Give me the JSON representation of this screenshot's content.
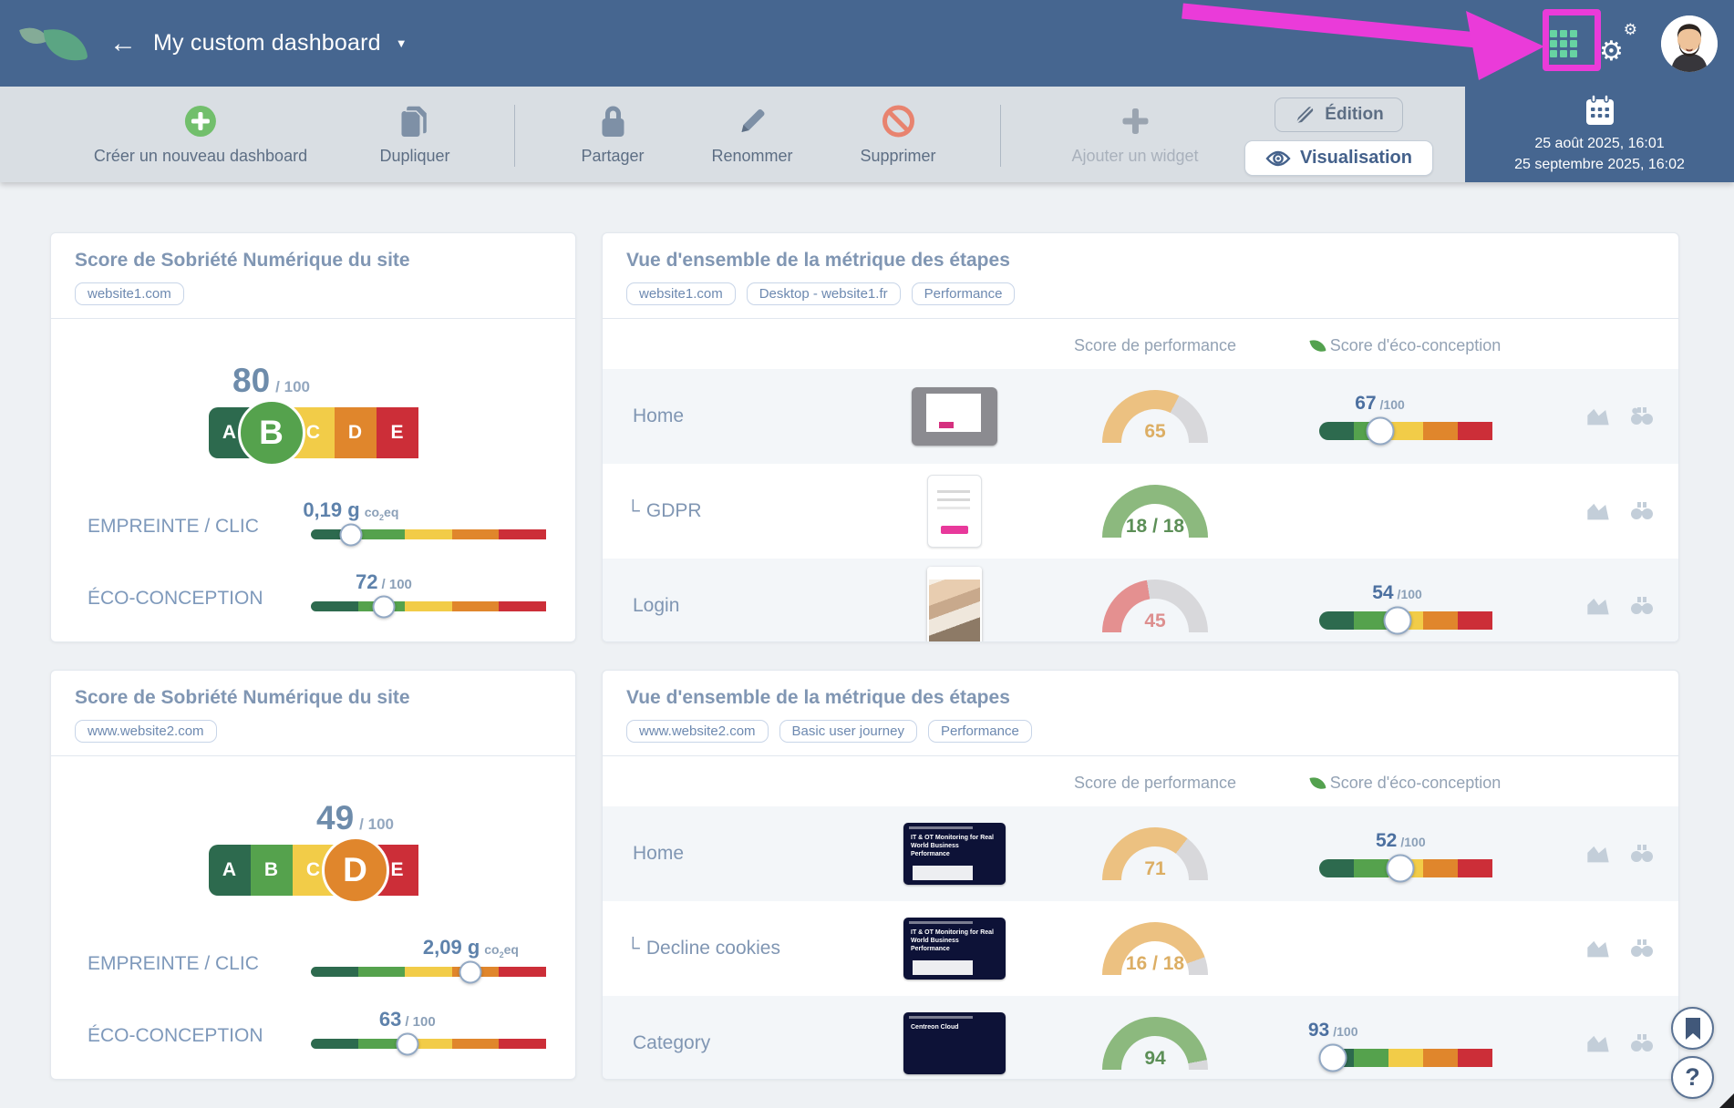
{
  "colors": {
    "accent_magenta": "#ea3bd9",
    "topbar_bg": "#466690",
    "grid_icon_green": "#67d3a2",
    "letter_colors": [
      "#2d6a4e",
      "#55a24d",
      "#f2cc48",
      "#e0862c",
      "#cc2e38"
    ],
    "gauge_orange": "#ecc181",
    "gauge_orange_text": "#dcae64",
    "gauge_green": "#8cb97e",
    "gauge_green_text": "#5c8f57",
    "gauge_red": "#e49090",
    "gauge_red_text": "#dd8f8f",
    "gauge_track": "#d8d8db"
  },
  "topbar": {
    "title": "My custom dashboard"
  },
  "toolbar": {
    "items": [
      {
        "label": "Créer un nouveau dashboard"
      },
      {
        "label": "Dupliquer"
      },
      {
        "label": "Partager"
      },
      {
        "label": "Renommer"
      },
      {
        "label": "Supprimer"
      },
      {
        "label": "Ajouter un widget"
      }
    ],
    "edition": "Édition",
    "visualisation": "Visualisation"
  },
  "datepanel": {
    "start": "25 août 2025, 16:01",
    "end": "25 septembre 2025, 16:02"
  },
  "letter_scale": [
    "A",
    "B",
    "C",
    "D",
    "E"
  ],
  "score_widgets": [
    {
      "title": "Score de Sobriété Numérique du site",
      "tag": "website1.com",
      "score": "80",
      "score_suffix": "/ 100",
      "grade": "B",
      "grade_index": 1,
      "empreinte_label": "EMPREINTE / CLIC",
      "empreinte_value": "0,19 g",
      "unit_pre": "co",
      "unit_sub": "2",
      "unit_post": "eq",
      "empreinte_pct": 17,
      "eco_label": "ÉCO-CONCEPTION",
      "eco_value": "72",
      "eco_suffix": "/ 100",
      "eco_pct": 31
    },
    {
      "title": "Score de Sobriété Numérique du site",
      "tag": "www.website2.com",
      "score": "49",
      "score_suffix": "/ 100",
      "grade": "D",
      "grade_index": 3,
      "empreinte_label": "EMPREINTE / CLIC",
      "empreinte_value": "2,09 g",
      "unit_pre": "co",
      "unit_sub": "2",
      "unit_post": "eq",
      "empreinte_pct": 68,
      "eco_label": "ÉCO-CONCEPTION",
      "eco_value": "63",
      "eco_suffix": "/ 100",
      "eco_pct": 41
    }
  ],
  "overview_widgets": [
    {
      "title": "Vue d'ensemble de la métrique des étapes",
      "tags": [
        "website1.com",
        "Desktop - website1.fr",
        "Performance"
      ],
      "col_performance": "Score de performance",
      "col_eco": "Score d'éco-conception",
      "rows": [
        {
          "prefix": "",
          "label": "Home",
          "thumb": "thumb-doc-gray",
          "gauge_value": "65",
          "gauge_pct": 65,
          "gauge_color": "orange",
          "has_eco": true,
          "eco_value": "67",
          "eco_suffix": "/100",
          "eco_pct": 35
        },
        {
          "prefix": "└",
          "label": "GDPR",
          "thumb": "thumb-form-white",
          "gauge_value": "18 / 18",
          "gauge_pct": 100,
          "gauge_color": "green",
          "has_eco": false
        },
        {
          "prefix": "",
          "label": "Login",
          "thumb": "thumb-photo",
          "gauge_value": "45",
          "gauge_pct": 45,
          "gauge_color": "red",
          "has_eco": true,
          "eco_value": "54",
          "eco_suffix": "/100",
          "eco_pct": 45
        }
      ]
    },
    {
      "title": "Vue d'ensemble de la métrique des étapes",
      "tags": [
        "www.website2.com",
        "Basic user journey",
        "Performance"
      ],
      "col_performance": "Score de performance",
      "col_eco": "Score d'éco-conception",
      "rows": [
        {
          "prefix": "",
          "label": "Home",
          "thumb": "thumb-site-dark pop",
          "thumb_text": "IT & OT Monitoring for Real World Business Performance",
          "gauge_value": "71",
          "gauge_pct": 71,
          "gauge_color": "orange",
          "has_eco": true,
          "eco_value": "52",
          "eco_suffix": "/100",
          "eco_pct": 47
        },
        {
          "prefix": "└",
          "label": "Decline cookies",
          "thumb": "thumb-site-dark pop",
          "thumb_text": "IT & OT Monitoring for Real World Business Performance",
          "gauge_value": "16 / 18",
          "gauge_pct": 89,
          "gauge_color": "orange",
          "has_eco": false
        },
        {
          "prefix": "",
          "label": "Category",
          "thumb": "thumb-site-dark",
          "thumb_text": "Centreon Cloud",
          "gauge_value": "94",
          "gauge_pct": 94,
          "gauge_color": "green",
          "has_eco": true,
          "eco_value": "93",
          "eco_suffix": "/100",
          "eco_pct": 8
        }
      ]
    }
  ],
  "floating": {
    "help": "?"
  }
}
